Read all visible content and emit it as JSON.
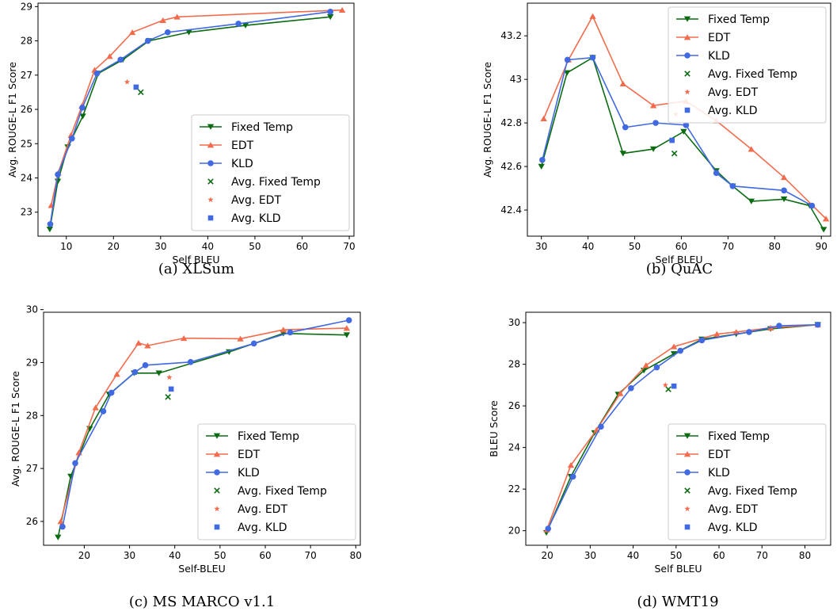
{
  "colors": {
    "fixed_temp": "#0b6b12",
    "edt": "#f26b4d",
    "kld": "#4169e1"
  },
  "chart_data": [
    {
      "id": "xlsum",
      "type": "line",
      "caption": "(a) XLSum",
      "xlabel": "Self BLEU",
      "ylabel": "Avg. ROUGE-L F1 Score",
      "xlim": [
        4,
        71
      ],
      "ylim": [
        22.3,
        29.1
      ],
      "xticks": [
        10,
        20,
        30,
        40,
        50,
        60,
        70
      ],
      "yticks": [
        23,
        24,
        25,
        26,
        27,
        28,
        29
      ],
      "legend": "lower-right",
      "series": [
        {
          "name": "Fixed Temp",
          "marker": "tri-down",
          "x": [
            6.5,
            8.2,
            10.3,
            13.5,
            16.8,
            22.0,
            27.5,
            36.0,
            48.0,
            66.0
          ],
          "y": [
            22.5,
            23.9,
            24.9,
            25.8,
            27.05,
            27.45,
            28.0,
            28.25,
            28.45,
            28.7
          ]
        },
        {
          "name": "EDT",
          "marker": "tri-up",
          "x": [
            6.8,
            8.3,
            11.0,
            13.3,
            16.0,
            19.2,
            24.0,
            30.5,
            33.5,
            68.5
          ],
          "y": [
            23.2,
            24.15,
            25.25,
            26.1,
            27.15,
            27.55,
            28.25,
            28.6,
            28.7,
            28.9
          ]
        },
        {
          "name": "KLD",
          "marker": "circle",
          "x": [
            6.6,
            8.2,
            11.2,
            13.4,
            16.5,
            21.5,
            27.3,
            31.5,
            46.5,
            66.0
          ],
          "y": [
            22.65,
            24.1,
            25.15,
            26.05,
            27.05,
            27.45,
            28.0,
            28.25,
            28.5,
            28.85
          ]
        }
      ],
      "averages": [
        {
          "name": "Avg. Fixed Temp",
          "marker": "x",
          "x": 25.8,
          "y": 26.5
        },
        {
          "name": "Avg. EDT",
          "marker": "star",
          "x": 22.9,
          "y": 26.8
        },
        {
          "name": "Avg. KLD",
          "marker": "square",
          "x": 24.8,
          "y": 26.65
        }
      ]
    },
    {
      "id": "quac",
      "type": "line",
      "caption": "(b) QuAC",
      "xlabel": "Self BLEU",
      "ylabel": "Avg. ROUGE-L F1 Score",
      "xlim": [
        27,
        92
      ],
      "ylim": [
        42.28,
        43.35
      ],
      "xticks": [
        30,
        40,
        50,
        60,
        70,
        80,
        90
      ],
      "yticks": [
        42.4,
        42.6,
        42.8,
        43.0,
        43.2
      ],
      "legend": "upper-right",
      "series": [
        {
          "name": "Fixed Temp",
          "marker": "tri-down",
          "x": [
            30.0,
            35.5,
            41.0,
            47.5,
            54.0,
            60.5,
            67.5,
            71.0,
            75.0,
            82.0,
            87.5,
            90.5
          ],
          "y": [
            42.6,
            43.03,
            43.1,
            42.66,
            42.68,
            42.76,
            42.58,
            42.51,
            42.44,
            42.45,
            42.42,
            42.31
          ]
        },
        {
          "name": "EDT",
          "marker": "tri-up",
          "x": [
            30.5,
            35.8,
            41.0,
            47.5,
            54.0,
            61.0,
            67.5,
            75.0,
            82.0,
            91.0
          ],
          "y": [
            42.82,
            43.09,
            43.29,
            42.98,
            42.88,
            42.9,
            42.81,
            42.68,
            42.55,
            42.36
          ]
        },
        {
          "name": "KLD",
          "marker": "circle",
          "x": [
            30.2,
            35.6,
            41.0,
            48.0,
            54.5,
            61.0,
            67.5,
            71.0,
            82.0,
            88.0
          ],
          "y": [
            42.63,
            43.09,
            43.1,
            42.78,
            42.8,
            42.79,
            42.57,
            42.51,
            42.49,
            42.42
          ]
        }
      ],
      "averages": [
        {
          "name": "Avg. Fixed Temp",
          "marker": "x",
          "x": 58.5,
          "y": 42.66
        },
        {
          "name": "Avg. EDT",
          "marker": "star",
          "x": 58.8,
          "y": 42.84
        },
        {
          "name": "Avg. KLD",
          "marker": "square",
          "x": 58.0,
          "y": 42.72
        }
      ]
    },
    {
      "id": "msmarco",
      "type": "line",
      "caption": "(c) MS MARCO v1.1",
      "xlabel": "Self-BLEU",
      "ylabel": "Avg. ROUGE-L F1 Score",
      "xlim": [
        11,
        81
      ],
      "ylim": [
        25.55,
        29.95
      ],
      "xticks": [
        20,
        30,
        40,
        50,
        60,
        70,
        80
      ],
      "yticks": [
        26,
        27,
        28,
        29,
        30
      ],
      "legend": "lower-right",
      "series": [
        {
          "name": "Fixed Temp",
          "marker": "tri-down",
          "x": [
            14.2,
            17.0,
            21.2,
            25.5,
            31.0,
            36.5,
            52.0,
            64.0,
            78.0
          ],
          "y": [
            25.7,
            26.85,
            27.75,
            28.4,
            28.8,
            28.8,
            29.2,
            29.55,
            29.52
          ]
        },
        {
          "name": "EDT",
          "marker": "tri-up",
          "x": [
            14.8,
            18.8,
            22.5,
            27.2,
            32.0,
            34.0,
            42.0,
            54.5,
            64.0,
            78.0
          ],
          "y": [
            26.0,
            27.3,
            28.15,
            28.78,
            29.37,
            29.32,
            29.46,
            29.45,
            29.62,
            29.65
          ]
        },
        {
          "name": "KLD",
          "marker": "circle",
          "x": [
            15.2,
            18.0,
            24.2,
            26.0,
            31.2,
            33.5,
            43.5,
            57.5,
            65.5,
            78.5
          ],
          "y": [
            25.9,
            27.1,
            28.08,
            28.43,
            28.82,
            28.95,
            29.01,
            29.36,
            29.57,
            29.8
          ]
        }
      ],
      "averages": [
        {
          "name": "Avg. Fixed Temp",
          "marker": "x",
          "x": 38.5,
          "y": 28.35
        },
        {
          "name": "Avg. EDT",
          "marker": "star",
          "x": 38.8,
          "y": 28.72
        },
        {
          "name": "Avg. KLD",
          "marker": "square",
          "x": 39.2,
          "y": 28.5
        }
      ]
    },
    {
      "id": "wmt19",
      "type": "line",
      "caption": "(d) WMT19",
      "xlabel": "Self BLEU",
      "ylabel": "BLEU Score",
      "xlim": [
        15,
        86
      ],
      "ylim": [
        19.3,
        30.5
      ],
      "xticks": [
        20,
        30,
        40,
        50,
        60,
        70,
        80
      ],
      "yticks": [
        20,
        22,
        24,
        26,
        28,
        30
      ],
      "legend": "lower-right",
      "series": [
        {
          "name": "Fixed Temp",
          "marker": "tri-down",
          "x": [
            19.8,
            25.5,
            31.0,
            36.5,
            42.5,
            49.5,
            56.0,
            64.0,
            72.0,
            83.0
          ],
          "y": [
            19.9,
            22.6,
            24.7,
            26.55,
            27.7,
            28.5,
            29.2,
            29.45,
            29.7,
            29.9
          ]
        },
        {
          "name": "EDT",
          "marker": "tri-up",
          "x": [
            19.9,
            25.5,
            31.5,
            37.0,
            43.0,
            49.5,
            59.5,
            64.0,
            72.0,
            83.0
          ],
          "y": [
            20.05,
            23.15,
            24.85,
            26.6,
            27.95,
            28.85,
            29.45,
            29.55,
            29.75,
            29.9
          ]
        },
        {
          "name": "KLD",
          "marker": "circle",
          "x": [
            20.2,
            26.0,
            32.5,
            39.5,
            45.5,
            51.0,
            56.0,
            67.0,
            74.0,
            83.0
          ],
          "y": [
            20.1,
            22.6,
            25.0,
            26.85,
            27.85,
            28.65,
            29.15,
            29.55,
            29.85,
            29.9
          ]
        }
      ],
      "averages": [
        {
          "name": "Avg. Fixed Temp",
          "marker": "x",
          "x": 48.2,
          "y": 26.8
        },
        {
          "name": "Avg. EDT",
          "marker": "star",
          "x": 47.5,
          "y": 27.0
        },
        {
          "name": "Avg. KLD",
          "marker": "square",
          "x": 49.5,
          "y": 26.95
        }
      ]
    }
  ]
}
